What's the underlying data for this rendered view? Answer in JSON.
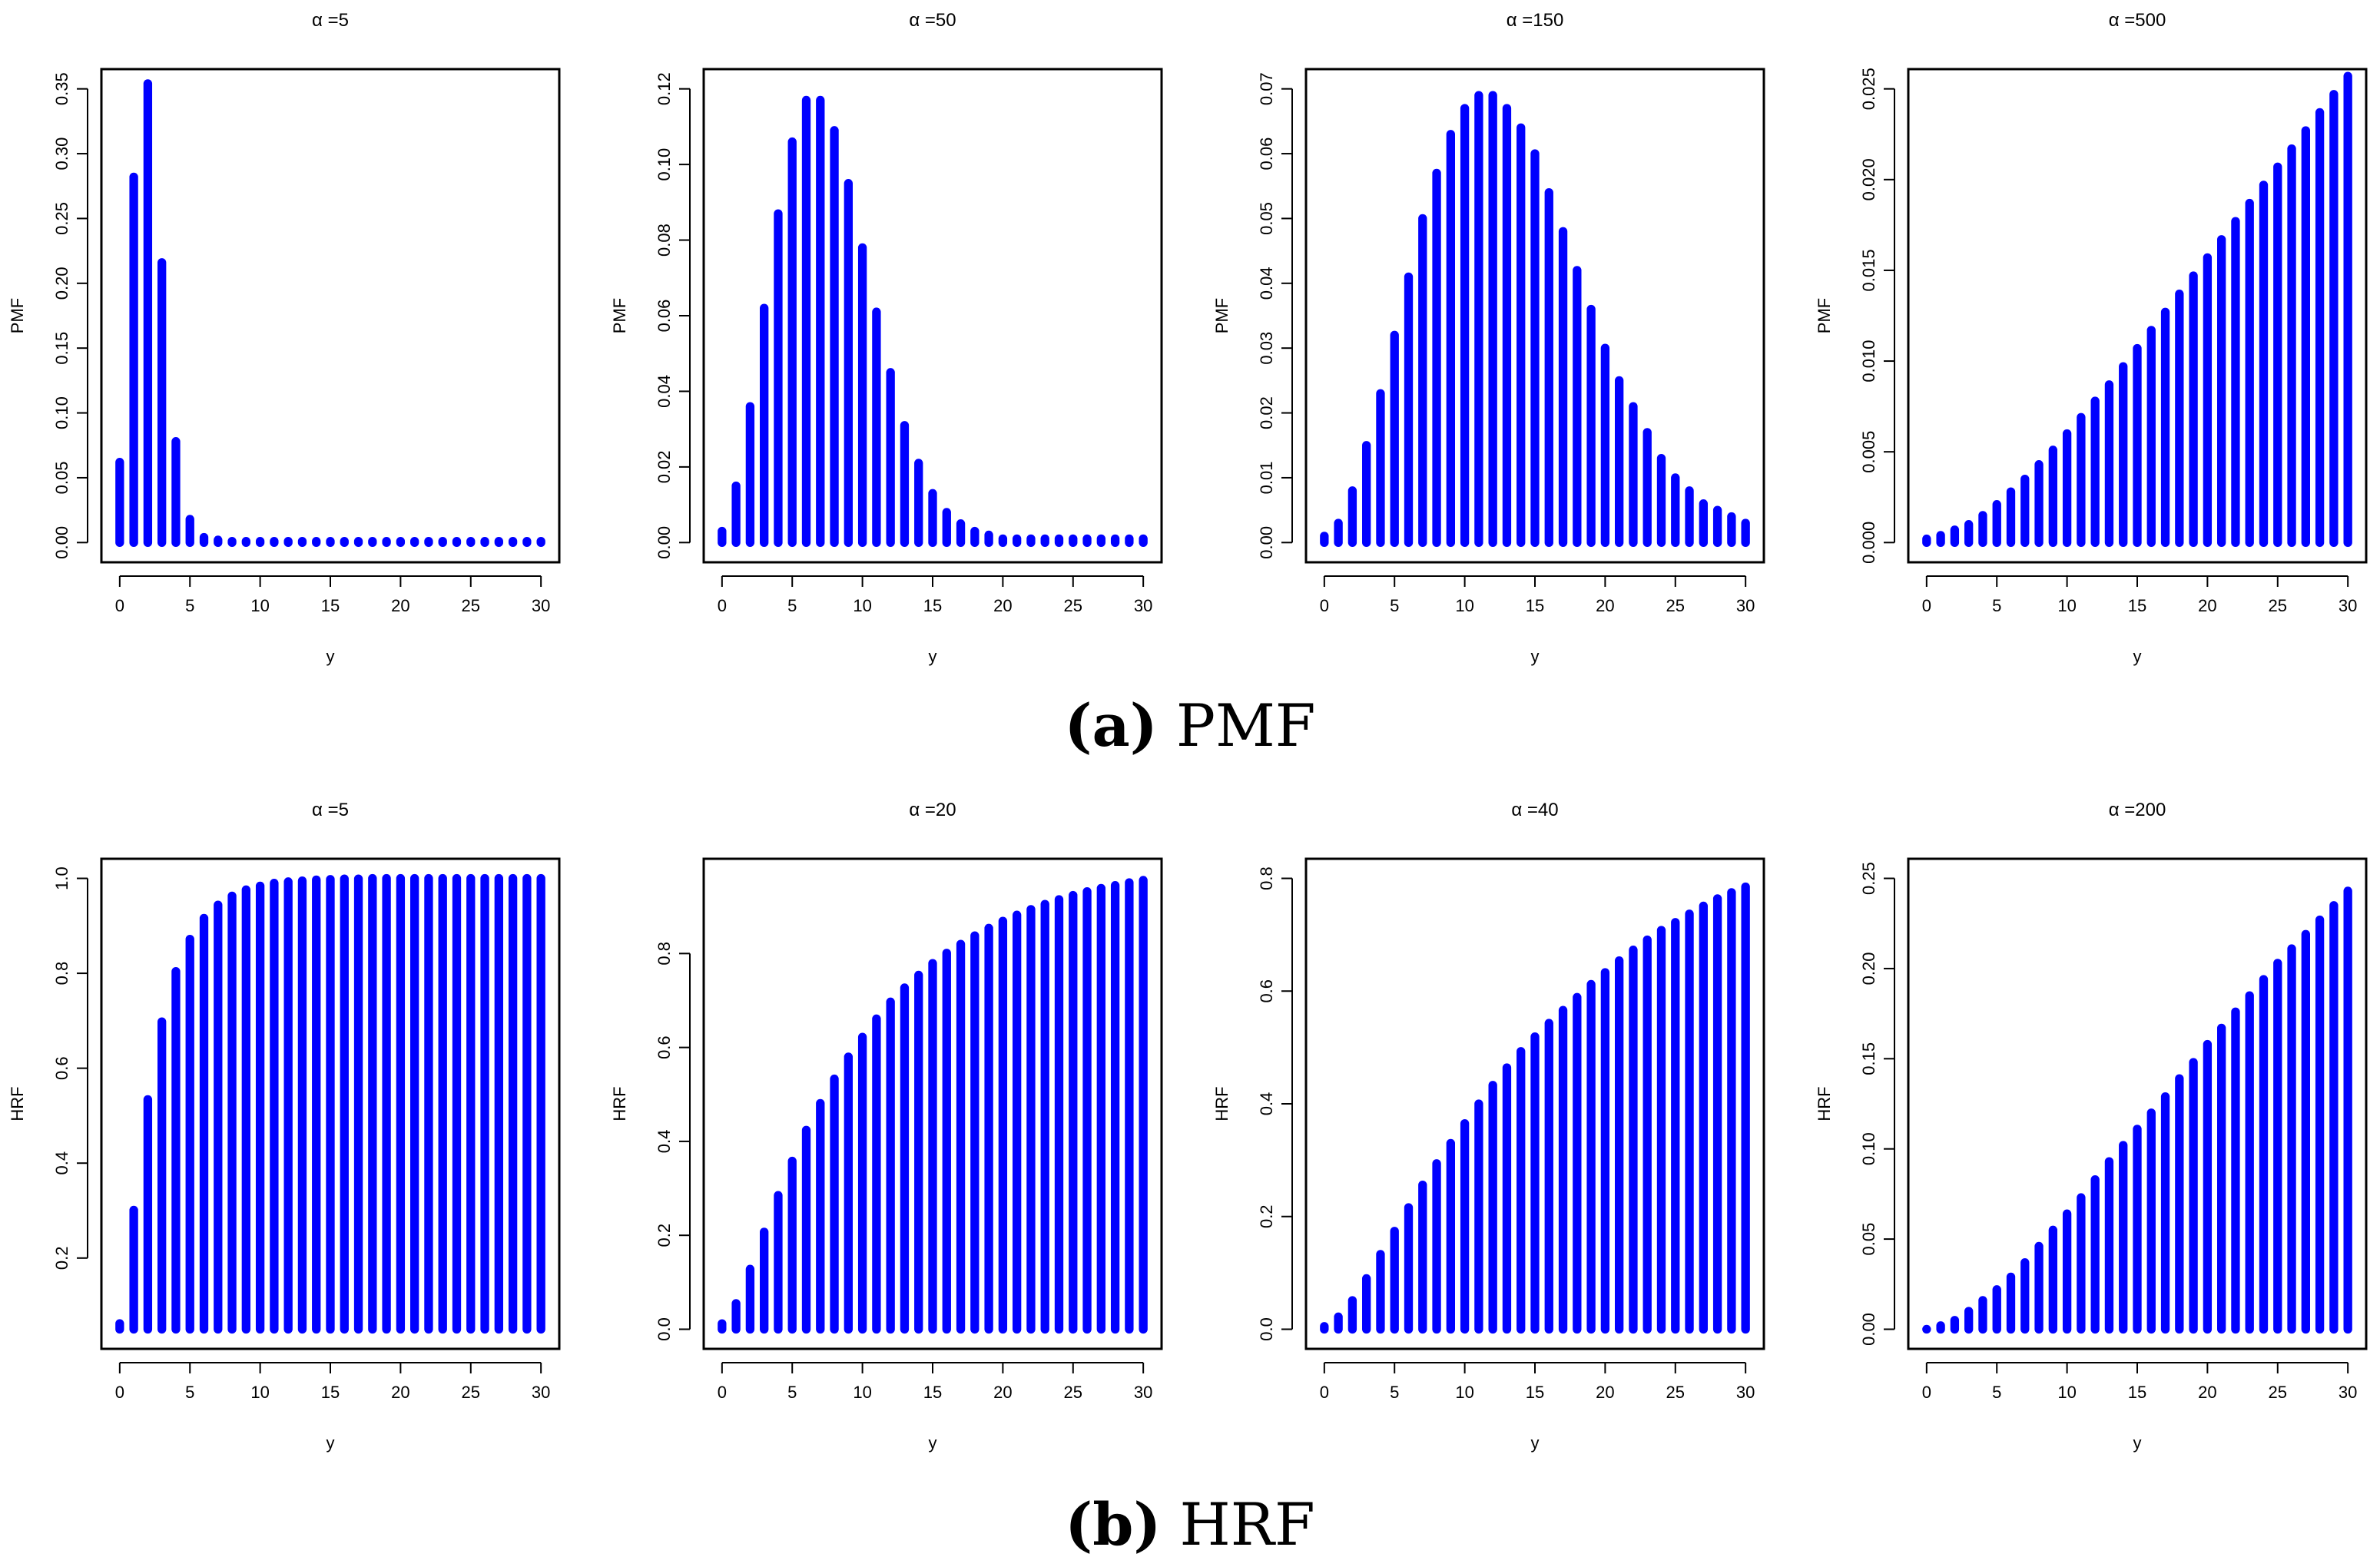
{
  "captions": {
    "a": {
      "tag": "a",
      "text": "PMF"
    },
    "b": {
      "tag": "b",
      "text": "HRF"
    }
  },
  "colors": {
    "bar": "#0000ff",
    "axis": "#000000"
  },
  "chart_data": [
    {
      "type": "bar",
      "panel": "a",
      "title": "α =5",
      "xlabel": "y",
      "ylabel": "PMF",
      "x": [
        0,
        1,
        2,
        3,
        4,
        5,
        6,
        7,
        8,
        9,
        10,
        11,
        12,
        13,
        14,
        15,
        16,
        17,
        18,
        19,
        20,
        21,
        22,
        23,
        24,
        25,
        26,
        27,
        28,
        29,
        30
      ],
      "values": [
        0.062,
        0.282,
        0.354,
        0.216,
        0.078,
        0.018,
        0.004,
        0.002,
        0.001,
        0.001,
        0.001,
        0.001,
        0.001,
        0.001,
        0.001,
        0.001,
        0.001,
        0.001,
        0.001,
        0.001,
        0.001,
        0.001,
        0.001,
        0.001,
        0.001,
        0.001,
        0.001,
        0.001,
        0.001,
        0.001,
        0.001
      ],
      "xlim": [
        0,
        30
      ],
      "ylim": [
        0,
        0.35
      ],
      "xticks": [
        0,
        5,
        10,
        15,
        20,
        25,
        30
      ],
      "yticks": [
        0,
        0.05,
        0.1,
        0.15,
        0.2,
        0.25,
        0.3,
        0.35
      ],
      "ytick_labels": [
        "0.00",
        "0.05",
        "0.10",
        "0.15",
        "0.20",
        "0.25",
        "0.30",
        "0.35"
      ]
    },
    {
      "type": "bar",
      "panel": "a",
      "title": "α =50",
      "xlabel": "y",
      "ylabel": "PMF",
      "x": [
        0,
        1,
        2,
        3,
        4,
        5,
        6,
        7,
        8,
        9,
        10,
        11,
        12,
        13,
        14,
        15,
        16,
        17,
        18,
        19,
        20,
        21,
        22,
        23,
        24,
        25,
        26,
        27,
        28,
        29,
        30
      ],
      "values": [
        0.003,
        0.015,
        0.036,
        0.062,
        0.087,
        0.106,
        0.117,
        0.117,
        0.109,
        0.095,
        0.078,
        0.061,
        0.045,
        0.031,
        0.021,
        0.013,
        0.008,
        0.005,
        0.003,
        0.002,
        0.001,
        0.001,
        0.001,
        0.001,
        0.001,
        0.001,
        0.001,
        0.001,
        0.001,
        0.001,
        0.001
      ],
      "xlim": [
        0,
        30
      ],
      "ylim": [
        0,
        0.12
      ],
      "xticks": [
        0,
        5,
        10,
        15,
        20,
        25,
        30
      ],
      "yticks": [
        0,
        0.02,
        0.04,
        0.06,
        0.08,
        0.1,
        0.12
      ],
      "ytick_labels": [
        "0.00",
        "0.02",
        "0.04",
        "0.06",
        "0.08",
        "0.10",
        "0.12"
      ]
    },
    {
      "type": "bar",
      "panel": "a",
      "title": "α =150",
      "xlabel": "y",
      "ylabel": "PMF",
      "x": [
        0,
        1,
        2,
        3,
        4,
        5,
        6,
        7,
        8,
        9,
        10,
        11,
        12,
        13,
        14,
        15,
        16,
        17,
        18,
        19,
        20,
        21,
        22,
        23,
        24,
        25,
        26,
        27,
        28,
        29,
        30
      ],
      "values": [
        0.001,
        0.003,
        0.008,
        0.015,
        0.023,
        0.032,
        0.041,
        0.05,
        0.057,
        0.063,
        0.067,
        0.069,
        0.069,
        0.067,
        0.064,
        0.06,
        0.054,
        0.048,
        0.042,
        0.036,
        0.03,
        0.025,
        0.021,
        0.017,
        0.013,
        0.01,
        0.008,
        0.006,
        0.005,
        0.004,
        0.003
      ],
      "xlim": [
        0,
        30
      ],
      "ylim": [
        0,
        0.07
      ],
      "xticks": [
        0,
        5,
        10,
        15,
        20,
        25,
        30
      ],
      "yticks": [
        0,
        0.01,
        0.02,
        0.03,
        0.04,
        0.05,
        0.06,
        0.07
      ],
      "ytick_labels": [
        "0.00",
        "0.01",
        "0.02",
        "0.03",
        "0.04",
        "0.05",
        "0.06",
        "0.07"
      ]
    },
    {
      "type": "bar",
      "panel": "a",
      "title": "α =500",
      "xlabel": "y",
      "ylabel": "PMF",
      "x": [
        0,
        1,
        2,
        3,
        4,
        5,
        6,
        7,
        8,
        9,
        10,
        11,
        12,
        13,
        14,
        15,
        16,
        17,
        18,
        19,
        20,
        21,
        22,
        23,
        24,
        25,
        26,
        27,
        28,
        29,
        30
      ],
      "values": [
        0.0002,
        0.0004,
        0.0007,
        0.001,
        0.0015,
        0.0021,
        0.0028,
        0.0035,
        0.0043,
        0.0051,
        0.006,
        0.0069,
        0.0078,
        0.0087,
        0.0097,
        0.0107,
        0.0117,
        0.0127,
        0.0137,
        0.0147,
        0.0157,
        0.0167,
        0.0177,
        0.0187,
        0.0197,
        0.0207,
        0.0217,
        0.0227,
        0.0237,
        0.0247,
        0.0257
      ],
      "xlim": [
        0,
        30
      ],
      "ylim": [
        0,
        0.025
      ],
      "xticks": [
        0,
        5,
        10,
        15,
        20,
        25,
        30
      ],
      "yticks": [
        0,
        0.005,
        0.01,
        0.015,
        0.02,
        0.025
      ],
      "ytick_labels": [
        "0.000",
        "0.005",
        "0.010",
        "0.015",
        "0.020",
        "0.025"
      ]
    },
    {
      "type": "bar",
      "panel": "b",
      "title": "α =5",
      "xlabel": "y",
      "ylabel": "HRF",
      "x": [
        0,
        1,
        2,
        3,
        4,
        5,
        6,
        7,
        8,
        9,
        10,
        11,
        12,
        13,
        14,
        15,
        16,
        17,
        18,
        19,
        20,
        21,
        22,
        23,
        24,
        25,
        26,
        27,
        28,
        29,
        30
      ],
      "values": [
        0.062,
        0.301,
        0.534,
        0.698,
        0.804,
        0.872,
        0.916,
        0.944,
        0.963,
        0.976,
        0.984,
        0.99,
        0.993,
        0.995,
        0.997,
        0.998,
        0.999,
        0.999,
        1.0,
        1.0,
        1.0,
        1.0,
        1.0,
        1.0,
        1.0,
        1.0,
        1.0,
        1.0,
        1.0,
        1.0,
        1.0
      ],
      "xlim": [
        0,
        30
      ],
      "ylim": [
        0.05,
        1.0
      ],
      "xticks": [
        0,
        5,
        10,
        15,
        20,
        25,
        30
      ],
      "yticks": [
        0.2,
        0.4,
        0.6,
        0.8,
        1.0
      ],
      "ytick_labels": [
        "0.2",
        "0.4",
        "0.6",
        "0.8",
        "1.0"
      ]
    },
    {
      "type": "bar",
      "panel": "b",
      "title": "α =20",
      "xlabel": "y",
      "ylabel": "HRF",
      "x": [
        0,
        1,
        2,
        3,
        4,
        5,
        6,
        7,
        8,
        9,
        10,
        11,
        12,
        13,
        14,
        15,
        16,
        17,
        18,
        19,
        20,
        21,
        22,
        23,
        24,
        25,
        26,
        27,
        28,
        29,
        30
      ],
      "values": [
        0.012,
        0.055,
        0.128,
        0.207,
        0.285,
        0.358,
        0.424,
        0.481,
        0.533,
        0.58,
        0.622,
        0.661,
        0.697,
        0.727,
        0.754,
        0.779,
        0.801,
        0.82,
        0.838,
        0.854,
        0.869,
        0.882,
        0.894,
        0.905,
        0.915,
        0.924,
        0.932,
        0.939,
        0.945,
        0.951,
        0.956
      ],
      "xlim": [
        0,
        30
      ],
      "ylim": [
        0,
        0.96
      ],
      "xticks": [
        0,
        5,
        10,
        15,
        20,
        25,
        30
      ],
      "yticks": [
        0,
        0.2,
        0.4,
        0.6,
        0.8
      ],
      "ytick_labels": [
        "0.0",
        "0.2",
        "0.4",
        "0.6",
        "0.8"
      ]
    },
    {
      "type": "bar",
      "panel": "b",
      "title": "α =40",
      "xlabel": "y",
      "ylabel": "HRF",
      "x": [
        0,
        1,
        2,
        3,
        4,
        5,
        6,
        7,
        8,
        9,
        10,
        11,
        12,
        13,
        14,
        15,
        16,
        17,
        18,
        19,
        20,
        21,
        22,
        23,
        24,
        25,
        26,
        27,
        28,
        29,
        30
      ],
      "values": [
        0.005,
        0.022,
        0.051,
        0.09,
        0.133,
        0.174,
        0.216,
        0.256,
        0.294,
        0.33,
        0.365,
        0.4,
        0.433,
        0.464,
        0.493,
        0.519,
        0.543,
        0.566,
        0.589,
        0.612,
        0.633,
        0.654,
        0.673,
        0.691,
        0.708,
        0.722,
        0.737,
        0.751,
        0.764,
        0.775,
        0.785
      ],
      "xlim": [
        0,
        30
      ],
      "ylim": [
        0,
        0.8
      ],
      "xticks": [
        0,
        5,
        10,
        15,
        20,
        25,
        30
      ],
      "yticks": [
        0,
        0.2,
        0.4,
        0.6,
        0.8
      ],
      "ytick_labels": [
        "0.0",
        "0.2",
        "0.4",
        "0.6",
        "0.8"
      ]
    },
    {
      "type": "bar",
      "panel": "b",
      "title": "α =200",
      "xlabel": "y",
      "ylabel": "HRF",
      "x": [
        0,
        1,
        2,
        3,
        4,
        5,
        6,
        7,
        8,
        9,
        10,
        11,
        12,
        13,
        14,
        15,
        16,
        17,
        18,
        19,
        20,
        21,
        22,
        23,
        24,
        25,
        26,
        27,
        28,
        29,
        30
      ],
      "values": [
        0.0,
        0.002,
        0.005,
        0.01,
        0.016,
        0.022,
        0.029,
        0.037,
        0.046,
        0.055,
        0.064,
        0.073,
        0.083,
        0.093,
        0.102,
        0.111,
        0.12,
        0.129,
        0.139,
        0.148,
        0.158,
        0.167,
        0.176,
        0.185,
        0.194,
        0.203,
        0.211,
        0.219,
        0.227,
        0.235,
        0.243
      ],
      "xlim": [
        0,
        30
      ],
      "ylim": [
        0,
        0.25
      ],
      "xticks": [
        0,
        5,
        10,
        15,
        20,
        25,
        30
      ],
      "yticks": [
        0,
        0.05,
        0.1,
        0.15,
        0.2,
        0.25
      ],
      "ytick_labels": [
        "0.00",
        "0.05",
        "0.10",
        "0.15",
        "0.20",
        "0.25"
      ]
    }
  ]
}
